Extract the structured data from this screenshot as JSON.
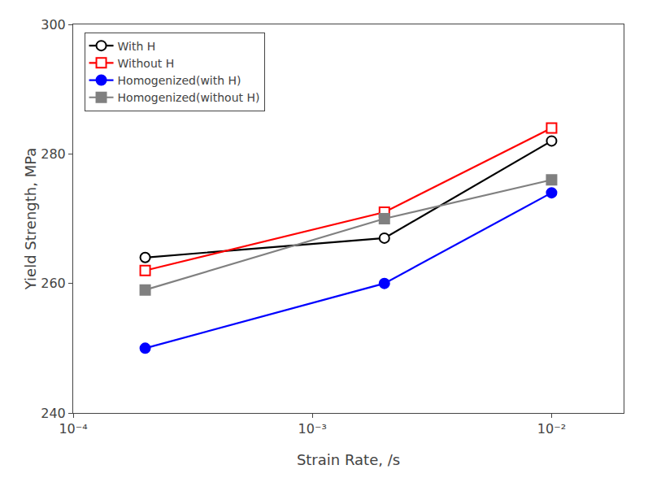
{
  "chart_data": {
    "type": "line",
    "x": [
      0.0002,
      0.002,
      0.01
    ],
    "series": [
      {
        "name": "With H",
        "color": "black",
        "marker": "circle-open",
        "values": [
          264,
          267,
          282
        ]
      },
      {
        "name": "Without H",
        "color": "red",
        "marker": "square-open",
        "values": [
          262,
          271,
          284
        ]
      },
      {
        "name": "Homogenized(with H)",
        "color": "blue",
        "marker": "circle",
        "values": [
          250,
          260,
          274
        ]
      },
      {
        "name": "Homogenized(without H)",
        "color": "gray",
        "marker": "square",
        "values": [
          259,
          270,
          276
        ]
      }
    ],
    "x_label": "Strain Rate, /s",
    "y_label": "Yield Strength, MPa",
    "log": "x",
    "xlim": [
      0.0001,
      0.02
    ],
    "xticks": [
      {
        "value": 0.0001,
        "label": "10⁻⁴"
      },
      {
        "value": 0.001,
        "label": "10⁻³"
      },
      {
        "value": 0.01,
        "label": "10⁻²"
      }
    ],
    "ylim": [
      240,
      300
    ],
    "yticks": [
      240,
      260,
      280,
      300
    ],
    "grid": false,
    "legend": "upper left"
  }
}
